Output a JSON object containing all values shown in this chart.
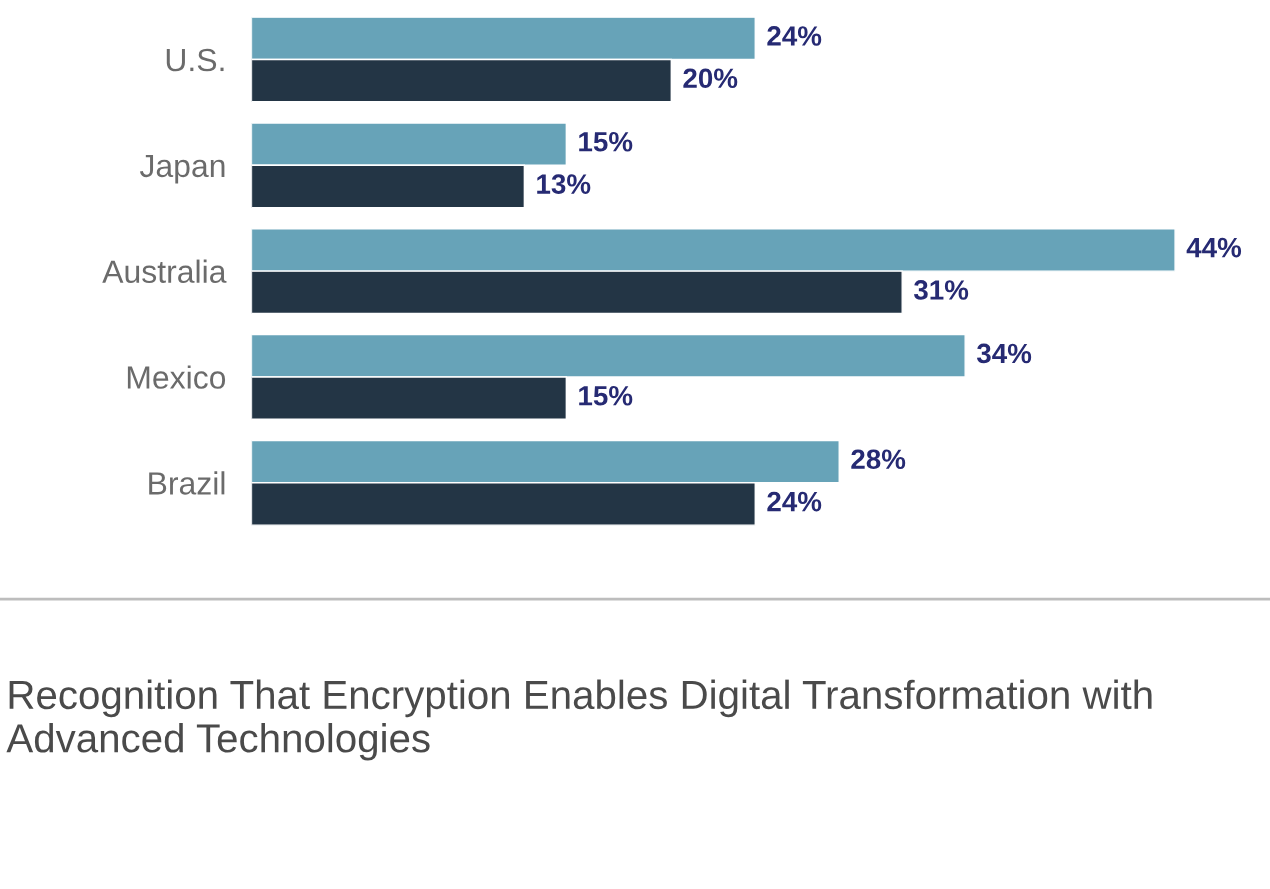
{
  "chart_data": {
    "type": "bar",
    "orientation": "horizontal",
    "categories": [
      "U.S.",
      "Japan",
      "Australia",
      "Mexico",
      "Brazil"
    ],
    "series": [
      {
        "color": "#67a3b8",
        "values": [
          24,
          15,
          44,
          34,
          28
        ],
        "value_labels": [
          "24%",
          "15%",
          "44%",
          "34%",
          "28%"
        ]
      },
      {
        "color": "#233545",
        "values": [
          20,
          13,
          31,
          15,
          24
        ],
        "value_labels": [
          "20%",
          "13%",
          "31%",
          "15%",
          "24%"
        ]
      }
    ],
    "grid": false,
    "legend": false,
    "annotations": [
      "Recognition That Encryption Enables Digital Transformation with Advanced Technologies"
    ]
  }
}
